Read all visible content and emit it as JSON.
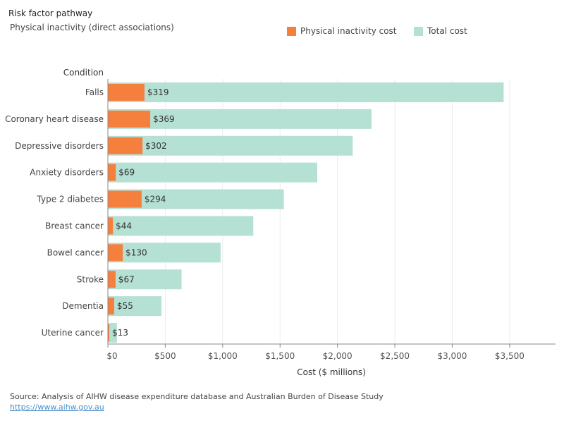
{
  "title": "Risk factor pathway",
  "subtitle": "Physical inactivity (direct associations)",
  "legend": [
    {
      "label": "Physical inactivity cost",
      "color": "#f5803e"
    },
    {
      "label": "Total cost",
      "color": "#b5e0d4"
    }
  ],
  "source": "Source: Analysis of AIHW disease expenditure database and Australian Burden of Disease Study",
  "url": "https://www.aihw.gov.au",
  "chart_data": {
    "type": "bar",
    "orientation": "horizontal",
    "ylabel": "Condition",
    "xlabel": "Cost ($ millions)",
    "xlim": [
      0,
      3900
    ],
    "xticks": [
      0,
      500,
      1000,
      1500,
      2000,
      2500,
      3000,
      3500
    ],
    "xtick_labels": [
      "$0",
      "$500",
      "$1,000",
      "$1,500",
      "$2,000",
      "$2,500",
      "$3,000",
      "$3,500"
    ],
    "grid": true,
    "legend_position": "top-right",
    "categories": [
      "Falls",
      "Coronary heart disease",
      "Depressive disorders",
      "Anxiety disorders",
      "Type 2 diabetes",
      "Breast cancer",
      "Bowel cancer",
      "Stroke",
      "Dementia",
      "Uterine cancer"
    ],
    "series": [
      {
        "name": "Total cost",
        "color": "#b5e0d4",
        "values": [
          3448,
          2297,
          2133,
          1824,
          1533,
          1267,
          982,
          642,
          467,
          79
        ]
      },
      {
        "name": "Physical inactivity cost",
        "color": "#f5803e",
        "values": [
          319,
          369,
          302,
          69,
          294,
          44,
          130,
          67,
          55,
          13
        ],
        "data_labels": [
          "$319",
          "$369",
          "$302",
          "$69",
          "$294",
          "$44",
          "$130",
          "$67",
          "$55",
          "$13"
        ]
      }
    ]
  }
}
